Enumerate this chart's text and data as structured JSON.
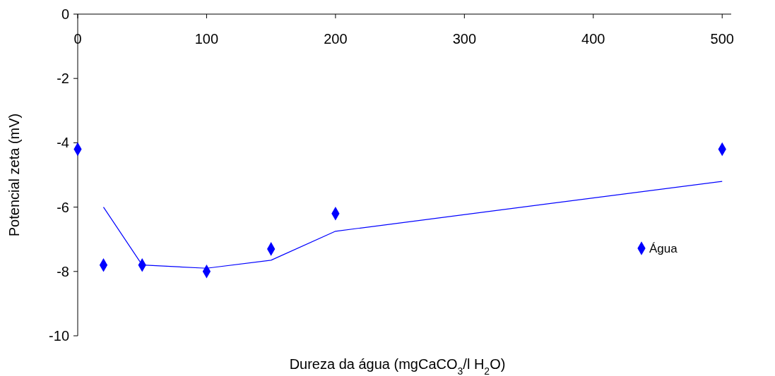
{
  "chart_data": {
    "type": "scatter",
    "xlabel": "Dureza da água (mgCaCO$_{3}$/l H$_{2}$O)",
    "ylabel": "Potencial zeta (mV)",
    "xlim": [
      0,
      507
    ],
    "xticks": [
      0,
      100,
      200,
      300,
      400,
      500
    ],
    "ylim": [
      -10,
      0
    ],
    "yticks": [
      0,
      -2,
      -4,
      -6,
      -8,
      -10
    ],
    "grid": false,
    "legend": "right",
    "marker": "diamond",
    "series": [
      {
        "name": "Água",
        "type": "scatter",
        "color": "#0000ff",
        "x": [
          0,
          20,
          50,
          100,
          150,
          200,
          500
        ],
        "values": [
          -4.2,
          -7.8,
          -7.8,
          -8.0,
          -7.3,
          -6.2,
          -4.2
        ]
      },
      {
        "type": "line",
        "color": "#0000ff",
        "line_style": "solid",
        "marker": "none",
        "x": [
          20,
          50,
          100,
          150,
          200,
          500
        ],
        "values": [
          -6.0,
          -7.8,
          -7.9,
          -7.65,
          -6.75,
          -5.2
        ]
      }
    ]
  }
}
